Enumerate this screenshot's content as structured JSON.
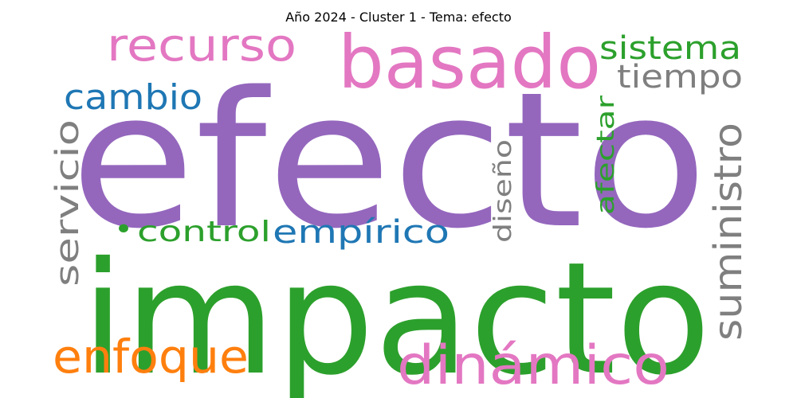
{
  "chart_data": {
    "type": "wordcloud",
    "title": "Año 2024 - Cluster 1 - Tema: efecto",
    "palette": {
      "purple": "#9467bd",
      "green": "#2ca02c",
      "pink": "#e377c2",
      "blue": "#1f77b4",
      "gray": "#7f7f7f",
      "orange": "#ff7f0e"
    },
    "words": [
      {
        "text": "efecto",
        "weight": 1.0,
        "color": "#9467bd",
        "orientation": "horizontal"
      },
      {
        "text": "impacto",
        "weight": 0.9,
        "color": "#2ca02c",
        "orientation": "horizontal"
      },
      {
        "text": "basado",
        "weight": 0.5,
        "color": "#e377c2",
        "orientation": "horizontal"
      },
      {
        "text": "dinámico",
        "weight": 0.34,
        "color": "#e377c2",
        "orientation": "horizontal"
      },
      {
        "text": "recurso",
        "weight": 0.3,
        "color": "#e377c2",
        "orientation": "horizontal"
      },
      {
        "text": "enfoque",
        "weight": 0.3,
        "color": "#ff7f0e",
        "orientation": "horizontal"
      },
      {
        "text": "suministro",
        "weight": 0.3,
        "color": "#7f7f7f",
        "orientation": "vertical"
      },
      {
        "text": "servicio",
        "weight": 0.26,
        "color": "#7f7f7f",
        "orientation": "vertical"
      },
      {
        "text": "cambio",
        "weight": 0.24,
        "color": "#1f77b4",
        "orientation": "horizontal"
      },
      {
        "text": "sistema",
        "weight": 0.22,
        "color": "#2ca02c",
        "orientation": "horizontal"
      },
      {
        "text": "tiempo",
        "weight": 0.22,
        "color": "#7f7f7f",
        "orientation": "horizontal"
      },
      {
        "text": "empírico",
        "weight": 0.22,
        "color": "#1f77b4",
        "orientation": "horizontal"
      },
      {
        "text": "control",
        "weight": 0.2,
        "color": "#2ca02c",
        "orientation": "horizontal"
      },
      {
        "text": "diseño",
        "weight": 0.18,
        "color": "#7f7f7f",
        "orientation": "vertical"
      },
      {
        "text": "afectar",
        "weight": 0.18,
        "color": "#2ca02c",
        "orientation": "vertical"
      },
      {
        "text": "•",
        "weight": 0.2,
        "color": "#2ca02c",
        "orientation": "horizontal"
      }
    ]
  }
}
